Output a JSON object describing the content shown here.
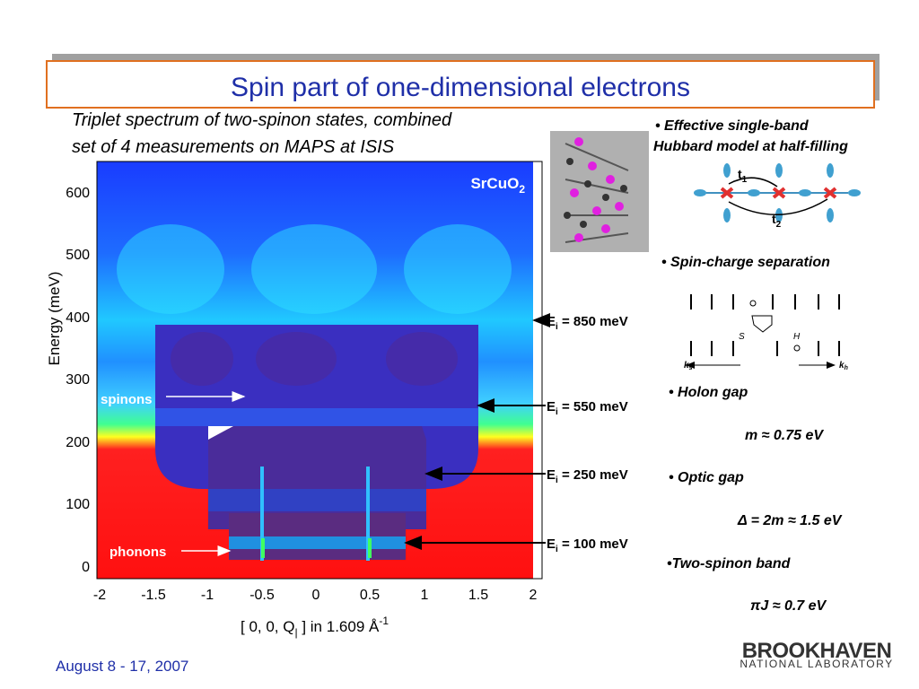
{
  "title": "Spin part of one-dimensional electrons",
  "caption": [
    "Triplet spectrum of two-spinon states, combined",
    "set of 4 measurements on MAPS at ISIS"
  ],
  "plot": {
    "material": {
      "main": "SrCuO",
      "sub": "2"
    },
    "y_label": "Energy  (meV)",
    "yticks": [
      "0",
      "100",
      "200",
      "300",
      "400",
      "500",
      "600"
    ],
    "xticks": [
      "-2",
      "-1.5",
      "-1",
      "-0.5",
      "0",
      "0.5",
      "1",
      "1.5",
      "2"
    ],
    "x_label": {
      "pre": "[ 0, 0, Q",
      "sub": "|",
      "mid": " ]  in 1.609 Å",
      "sup": "-1"
    },
    "annotations": [
      "spinons",
      "phonons"
    ],
    "incident_energies": [
      {
        "main": "E",
        "sub": "i",
        "rest": " = 850 meV"
      },
      {
        "main": "E",
        "sub": "i",
        "rest": " = 550 meV"
      },
      {
        "main": "E",
        "sub": "i",
        "rest": " = 250 meV"
      },
      {
        "main": "E",
        "sub": "i",
        "rest": " = 100 meV"
      }
    ]
  },
  "right_panel": {
    "hubbard": [
      "• Effective single-band",
      "Hubbard model at half-filling"
    ],
    "hopping": [
      {
        "main": "t",
        "sub": "1"
      },
      {
        "main": "t",
        "sub": "2"
      }
    ],
    "separation": "• Spin-charge separation",
    "separation_labels": [
      "S",
      "H",
      "k",
      "s",
      "k",
      "h"
    ],
    "holon_gap": "• Holon gap",
    "holon_value": "m ≈ 0.75 eV",
    "optic_gap": "• Optic gap",
    "optic_value": "Δ = 2m ≈ 1.5 eV",
    "band": "•Two-spinon band",
    "band_value": "πJ ≈ 0.7 eV"
  },
  "footer": {
    "date": "August 8 - 17, 2007",
    "logo": [
      "BROOKHAVEN",
      "NATIONAL LABORATORY"
    ]
  }
}
